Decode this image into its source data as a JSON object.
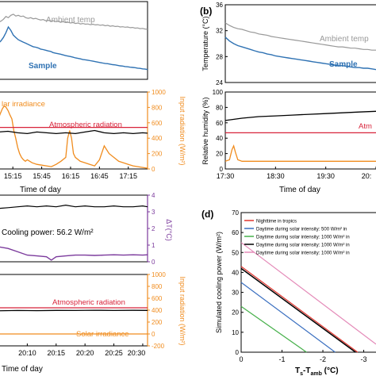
{
  "colors": {
    "axis": "#000000",
    "ambient": "#999999",
    "sample": "#2f72b3",
    "solar": "#f08c1e",
    "atmospheric": "#d8233a",
    "humidity": "#000000",
    "purple": "#7b3a9c",
    "l_red": "#e0352e",
    "l_blue": "#3a6fc0",
    "l_green": "#46b04a",
    "l_black": "#000000",
    "l_pink": "#e48ab8"
  },
  "chart_data": [
    {
      "id": "a_top",
      "type": "line",
      "annotations": [
        "Ambient temp",
        "Sample"
      ],
      "series": [
        {
          "name": "Ambient temp",
          "x": [
            0,
            3,
            6,
            9,
            12,
            15,
            18,
            21,
            24,
            27,
            30,
            33,
            36,
            39,
            42,
            45,
            48,
            51,
            54,
            57,
            60,
            63,
            66,
            69,
            72,
            75,
            78,
            81,
            84,
            87,
            90,
            93,
            96,
            99,
            102,
            105,
            108,
            111,
            114,
            117,
            120,
            123,
            126,
            129,
            132,
            135,
            138,
            141,
            144,
            147,
            150,
            153,
            156,
            159,
            162,
            165,
            168,
            171,
            174,
            177,
            180
          ],
          "y": [
            0.55,
            0.5,
            0.42,
            0.3,
            0.35,
            0.25,
            0.2,
            0.28,
            0.25,
            0.3,
            0.28,
            0.35,
            0.38,
            0.35,
            0.4,
            0.38,
            0.42,
            0.45,
            0.43,
            0.48,
            0.46,
            0.5,
            0.48,
            0.52,
            0.5,
            0.55,
            0.52,
            0.56,
            0.55,
            0.58,
            0.56,
            0.6,
            0.58,
            0.62,
            0.6,
            0.63,
            0.62,
            0.65,
            0.63,
            0.66,
            0.65,
            0.68,
            0.66,
            0.7,
            0.68,
            0.72,
            0.7,
            0.73,
            0.72,
            0.75,
            0.74,
            0.76,
            0.75,
            0.78,
            0.77,
            0.8,
            0.79,
            0.82,
            0.81,
            0.84,
            0.85
          ]
        },
        {
          "name": "Sample",
          "x": [
            0,
            3,
            6,
            9,
            12,
            15,
            18,
            21,
            24,
            27,
            30,
            33,
            36,
            39,
            42,
            45,
            48,
            51,
            54,
            57,
            60,
            63,
            66,
            69,
            72,
            75,
            78,
            81,
            84,
            87,
            90,
            93,
            96,
            99,
            102,
            105,
            108,
            111,
            114,
            117,
            120,
            123,
            126,
            129,
            132,
            135,
            138,
            141,
            144,
            147,
            150,
            153,
            156,
            159,
            162,
            165,
            168,
            171,
            174,
            177,
            180
          ],
          "y": [
            1.45,
            1.35,
            1.2,
            1.0,
            0.75,
            0.9,
            1.1,
            1.2,
            1.3,
            1.35,
            1.4,
            1.45,
            1.5,
            1.55,
            1.6,
            1.62,
            1.65,
            1.7,
            1.72,
            1.75,
            1.78,
            1.8,
            1.85,
            1.88,
            1.9,
            1.92,
            1.95,
            1.98,
            2.0,
            2.02,
            2.05,
            2.08,
            2.1,
            2.12,
            2.15,
            2.16,
            2.18,
            2.2,
            2.22,
            2.24,
            2.26,
            2.28,
            2.3,
            2.32,
            2.33,
            2.35,
            2.37,
            2.38,
            2.4,
            2.42,
            2.43,
            2.45,
            2.46,
            2.48,
            2.49,
            2.5,
            2.52,
            2.53,
            2.55,
            2.56,
            2.58
          ]
        }
      ]
    },
    {
      "id": "a_bottom",
      "type": "line",
      "xlabel": "Time of day",
      "ylabel": "Input radiation (W/m²)",
      "ylim": [
        0,
        1000
      ],
      "yticks": [
        "0",
        "200",
        "400",
        "600",
        "800",
        "1000"
      ],
      "xticks": [
        "15:15",
        "15:45",
        "16:15",
        "16:45",
        "17:15"
      ],
      "xtick_positions": [
        15,
        45,
        75,
        105,
        135
      ],
      "xlim": [
        0,
        155
      ],
      "annotations": [
        "lar irradiance",
        "Atmospheric radiation"
      ],
      "series": [
        {
          "name": "Solar irradiance",
          "x": [
            0,
            2,
            4,
            6,
            8,
            10,
            12,
            14,
            16,
            18,
            20,
            22,
            24,
            26,
            28,
            30,
            35,
            40,
            45,
            50,
            55,
            60,
            65,
            70,
            72,
            74,
            76,
            78,
            80,
            85,
            90,
            95,
            100,
            105,
            110,
            115,
            120,
            125,
            130,
            135,
            140,
            145,
            150,
            155
          ],
          "y": [
            650,
            720,
            780,
            820,
            800,
            760,
            700,
            650,
            500,
            400,
            280,
            200,
            150,
            120,
            100,
            120,
            80,
            60,
            50,
            40,
            30,
            60,
            100,
            150,
            400,
            500,
            400,
            200,
            150,
            100,
            80,
            60,
            40,
            120,
            300,
            200,
            150,
            100,
            80,
            60,
            40,
            30,
            20,
            10
          ]
        },
        {
          "name": "Atmospheric radiation",
          "x": [
            0,
            155
          ],
          "y": [
            540,
            540
          ]
        },
        {
          "name": "Sample",
          "x": [
            0,
            10,
            20,
            30,
            40,
            50,
            60,
            70,
            80,
            90,
            100,
            110,
            120,
            130,
            140,
            150,
            155
          ],
          "y": [
            480,
            490,
            470,
            460,
            480,
            470,
            460,
            470,
            460,
            480,
            500,
            470,
            460,
            470,
            460,
            470,
            465
          ]
        }
      ]
    },
    {
      "id": "b",
      "type": "line",
      "xlabel": "Time of day",
      "xticks": [
        "17:30",
        "18:30",
        "19:30",
        "20:"
      ],
      "top": {
        "ylabel": "Temperature (°C)",
        "ylim": [
          24,
          36
        ],
        "yticks": [
          "24",
          "28",
          "32",
          "36"
        ],
        "annotations": [
          "Ambient temp",
          "Sample"
        ],
        "series": [
          {
            "name": "Ambient temp",
            "x": [
              0,
              5,
              10,
              15,
              20,
              25,
              30,
              35,
              40,
              45,
              50,
              55,
              60,
              65,
              70,
              75,
              80,
              85,
              90,
              95,
              100,
              105,
              110,
              115,
              120,
              125,
              130,
              135,
              140,
              145,
              150,
              155,
              160,
              165,
              170,
              175,
              180
            ],
            "y": [
              33.2,
              32.8,
              32.5,
              32.3,
              32.2,
              32.0,
              31.8,
              31.7,
              31.5,
              31.4,
              31.3,
              31.1,
              31.0,
              30.9,
              30.8,
              30.7,
              30.6,
              30.5,
              30.4,
              30.3,
              30.2,
              30.1,
              30.0,
              29.9,
              29.8,
              29.7,
              29.6,
              29.5,
              29.5,
              29.4,
              29.3,
              29.3,
              29.2,
              29.1,
              29.1,
              29.0,
              29.0
            ]
          },
          {
            "name": "Sample",
            "x": [
              0,
              5,
              10,
              15,
              20,
              25,
              30,
              35,
              40,
              45,
              50,
              55,
              60,
              65,
              70,
              75,
              80,
              85,
              90,
              95,
              100,
              105,
              110,
              115,
              120,
              125,
              130,
              135,
              140,
              145,
              150,
              155,
              160,
              165,
              170,
              175,
              180
            ],
            "y": [
              31.0,
              30.4,
              30.0,
              29.7,
              29.5,
              29.3,
              29.1,
              28.9,
              28.7,
              28.6,
              28.4,
              28.3,
              28.1,
              28.0,
              27.9,
              27.8,
              27.7,
              27.6,
              27.5,
              27.4,
              27.3,
              27.2,
              27.1,
              27.0,
              26.9,
              26.8,
              26.7,
              26.6,
              26.6,
              26.5,
              26.4,
              26.3,
              26.3,
              26.2,
              26.2,
              26.1,
              26.0
            ]
          }
        ]
      },
      "bottom": {
        "ylabel": "Relative humidity (%)",
        "ylim": [
          0,
          100
        ],
        "yticks": [
          "0",
          "20",
          "40",
          "60",
          "80",
          "100"
        ],
        "annotations": [
          "Atm"
        ],
        "series": [
          {
            "name": "Relative humidity",
            "x": [
              0,
              20,
              40,
              60,
              80,
              100,
              120,
              140,
              160,
              180
            ],
            "y": [
              63,
              66,
              68,
              69,
              70,
              71,
              72,
              73,
              74,
              75
            ]
          },
          {
            "name": "Atmospheric radiation",
            "x": [
              0,
              180
            ],
            "y": [
              47,
              47
            ]
          },
          {
            "name": "Solar irradiance",
            "x": [
              0,
              5,
              8,
              10,
              12,
              15,
              20,
              40,
              80,
              120,
              180
            ],
            "y": [
              10,
              12,
              25,
              30,
              22,
              12,
              10,
              10,
              10,
              10,
              10
            ]
          }
        ]
      }
    },
    {
      "id": "c_top",
      "type": "line",
      "ylabel": "ΔT(°C)",
      "ylim": [
        0,
        4
      ],
      "yticks": [
        "0",
        "1",
        "2",
        "3",
        "4"
      ],
      "annotations": [
        "Cooling power: 56.2 W/m²"
      ],
      "series": [
        {
          "name": "Cooling power",
          "x": [
            0,
            10,
            20,
            30,
            40,
            50,
            60,
            70,
            80,
            90,
            100,
            110,
            120,
            130,
            140,
            150,
            155
          ],
          "y": [
            3.2,
            3.25,
            3.3,
            3.35,
            3.3,
            3.35,
            3.3,
            3.4,
            3.3,
            3.35,
            3.3,
            3.3,
            3.35,
            3.3,
            3.3,
            3.35,
            3.3
          ]
        },
        {
          "name": "ΔT",
          "x": [
            0,
            10,
            20,
            30,
            40,
            50,
            55,
            60,
            70,
            80,
            90,
            100,
            110,
            120,
            130,
            140,
            150,
            155
          ],
          "y": [
            0.9,
            0.8,
            0.6,
            0.4,
            0.35,
            0.3,
            0.1,
            0.3,
            0.35,
            0.4,
            0.4,
            0.38,
            0.4,
            0.42,
            0.4,
            0.42,
            0.4,
            0.42
          ]
        }
      ]
    },
    {
      "id": "c_bottom",
      "type": "line",
      "xlabel": "Time of day",
      "ylabel": "Input radiation (W/m²)",
      "ylim": [
        -200,
        1000
      ],
      "yticks": [
        "-200",
        "0",
        "200",
        "400",
        "600",
        "800",
        "1000"
      ],
      "xticks": [
        "20:10",
        "20:15",
        "20:20",
        "20:25",
        "20:30"
      ],
      "xtick_positions": [
        30,
        60,
        90,
        120,
        150
      ],
      "xlim": [
        0,
        155
      ],
      "annotations": [
        "Atmospheric radiation",
        "Solar irradiance"
      ],
      "series": [
        {
          "name": "Atmospheric radiation",
          "x": [
            0,
            155
          ],
          "y": [
            440,
            440
          ]
        },
        {
          "name": "Sample",
          "x": [
            0,
            20,
            40,
            60,
            80,
            100,
            120,
            140,
            155
          ],
          "y": [
            390,
            395,
            392,
            396,
            394,
            398,
            395,
            397,
            396
          ]
        },
        {
          "name": "Solar irradiance",
          "x": [
            0,
            155
          ],
          "y": [
            0,
            0
          ]
        }
      ]
    },
    {
      "id": "d",
      "type": "line",
      "label": "(d)",
      "xlabel": "T",
      "xlabel_sub": "s",
      "xlabel_mid": "-T",
      "xlabel_sub2": "amb",
      "xlabel_unit": " (°C)",
      "ylabel": "Simulated cooling power (W/m²)",
      "xlim": [
        0,
        -3.3
      ],
      "ylim": [
        0,
        70
      ],
      "xticks": [
        "0",
        "-1",
        "-2",
        "-3"
      ],
      "yticks": [
        "0",
        "10",
        "20",
        "30",
        "40",
        "50",
        "60",
        "70"
      ],
      "legend": [
        "Nighttime in tropics",
        "Daytime during solar intensity: 500 W/m² in",
        "Daytime during solar intensity: 1000 W/m² in",
        "Daytime during solar intensity: 1000 W/m² in",
        "Daytime during solar intensity: 1000 W/m² in"
      ],
      "series": [
        {
          "name": "Nighttime in tropics",
          "x": [
            0,
            -2.85
          ],
          "y": [
            43,
            0
          ]
        },
        {
          "name": "Daytime during solar intensity: 500 W/m² in",
          "x": [
            0,
            -2.3
          ],
          "y": [
            35,
            0
          ]
        },
        {
          "name": "Daytime during solar intensity: 1000 W/m² in",
          "x": [
            0,
            -1.6
          ],
          "y": [
            23,
            0
          ]
        },
        {
          "name": "Daytime during solar intensity: 1000 W/m² in",
          "x": [
            0,
            -2.8
          ],
          "y": [
            42,
            0
          ]
        },
        {
          "name": "Daytime during solar intensity: 1000 W/m² in",
          "x": [
            0,
            -3.3
          ],
          "y": [
            55,
            4
          ]
        }
      ]
    }
  ],
  "panel_b_label": "(b)"
}
